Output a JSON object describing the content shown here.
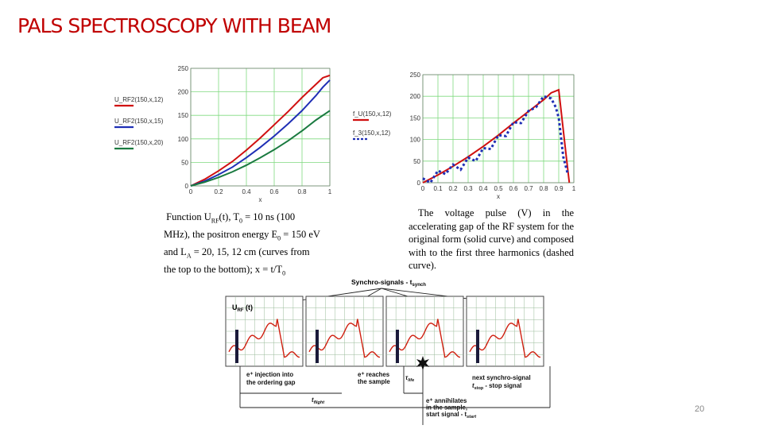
{
  "slide": {
    "title": "PALS SPECTROSCOPY WITH BEAM",
    "page_number": "20"
  },
  "captions": {
    "left_line1": "Function U",
    "left_sub1": "RF",
    "left_line1b": "(t), T",
    "left_sub2": "0",
    "left_line1c": " = 10 ns (100",
    "left_line2": "MHz), the positron energy E",
    "left_sub3": "0",
    "left_line2b": " = 150 eV",
    "left_line3": "and L",
    "left_sub4": "A",
    "left_line3b": " = 20, 15, 12 cm (curves from",
    "left_line4": "the top to the bottom); x = t/T",
    "left_sub5": "0",
    "right": "The voltage pulse (V) in the accelerating gap of the RF system for the original form (solid curve) and composed with to the first three harmonics (dashed curve)."
  },
  "chart_data": [
    {
      "type": "line",
      "title": "",
      "xlabel": "x",
      "ylabel": "",
      "xlim": [
        0,
        1
      ],
      "ylim": [
        0,
        250
      ],
      "x_ticks": [
        "0",
        "0.2",
        "0.4",
        "0.6",
        "0.8",
        "1"
      ],
      "y_ticks": [
        "0",
        "50",
        "100",
        "150",
        "200",
        "250"
      ],
      "grid": true,
      "series": [
        {
          "name": "U_RF2(150,x,12)",
          "color": "#d01010",
          "x": [
            0,
            0.1,
            0.2,
            0.3,
            0.4,
            0.5,
            0.6,
            0.7,
            0.8,
            0.9,
            0.95,
            1.0
          ],
          "values": [
            0,
            14,
            32,
            52,
            76,
            102,
            130,
            158,
            188,
            216,
            230,
            235
          ]
        },
        {
          "name": "U_RF2(150,x,15)",
          "color": "#1f2fb5",
          "x": [
            0,
            0.1,
            0.2,
            0.3,
            0.4,
            0.5,
            0.6,
            0.7,
            0.8,
            0.9,
            0.95,
            1.0
          ],
          "values": [
            0,
            10,
            24,
            40,
            60,
            82,
            106,
            132,
            160,
            192,
            210,
            225
          ]
        },
        {
          "name": "U_RF2(150,x,20)",
          "color": "#1a7a40",
          "x": [
            0,
            0.1,
            0.2,
            0.3,
            0.4,
            0.5,
            0.6,
            0.7,
            0.8,
            0.9,
            1.0
          ],
          "values": [
            0,
            8,
            18,
            30,
            44,
            60,
            77,
            96,
            117,
            140,
            160
          ]
        }
      ]
    },
    {
      "type": "line",
      "title": "",
      "xlabel": "x",
      "ylabel": "",
      "xlim": [
        0,
        1
      ],
      "ylim": [
        0,
        250
      ],
      "x_ticks": [
        "0",
        "0.1",
        "0.2",
        "0.3",
        "0.4",
        "0.5",
        "0.6",
        "0.7",
        "0.8",
        "0.9",
        "1"
      ],
      "y_ticks": [
        "0",
        "50",
        "100",
        "150",
        "200",
        "250"
      ],
      "grid": true,
      "series": [
        {
          "name": "f_U(150,x,12)",
          "color": "#d01010",
          "style": "solid",
          "x": [
            0,
            0.1,
            0.2,
            0.3,
            0.4,
            0.5,
            0.6,
            0.7,
            0.8,
            0.85,
            0.9,
            0.95,
            0.97
          ],
          "values": [
            0,
            18,
            38,
            60,
            84,
            110,
            138,
            165,
            192,
            208,
            215,
            60,
            0
          ]
        },
        {
          "name": "f_3(150,x,12)",
          "color": "#1f2fb5",
          "style": "dashed",
          "x": [
            0,
            0.05,
            0.1,
            0.15,
            0.2,
            0.25,
            0.3,
            0.35,
            0.4,
            0.45,
            0.5,
            0.55,
            0.6,
            0.65,
            0.7,
            0.75,
            0.8,
            0.85,
            0.88,
            0.9,
            0.93,
            0.96
          ],
          "values": [
            10,
            0,
            28,
            20,
            42,
            30,
            58,
            50,
            80,
            78,
            110,
            108,
            140,
            138,
            166,
            175,
            200,
            195,
            175,
            150,
            60,
            20
          ]
        }
      ]
    }
  ],
  "timing_diagram": {
    "synchro_label": "Synchro-signals - t",
    "synchro_sub": "synch",
    "urf_label": "U",
    "urf_sub": "RF",
    "urf_suffix": " (t)",
    "injection_label_1": "e⁺ injection into",
    "injection_label_2": "the ordering gap",
    "reaches_label_1": "e⁺ reaches",
    "reaches_label_2": "the sample",
    "next_label_1": "next synchro-signal",
    "next_label_2": "t",
    "next_label_2_sub": "stop",
    "next_label_2_rest": " - stop signal",
    "tflight_label": "t",
    "tflight_sub": "flight",
    "tlife_label": "τ",
    "tlife_sub": "life",
    "annihilate_1": "e⁺ annihilates",
    "annihilate_2": "in the sample,",
    "annihilate_3": "start signal - t",
    "annihilate_3_sub": "start"
  }
}
